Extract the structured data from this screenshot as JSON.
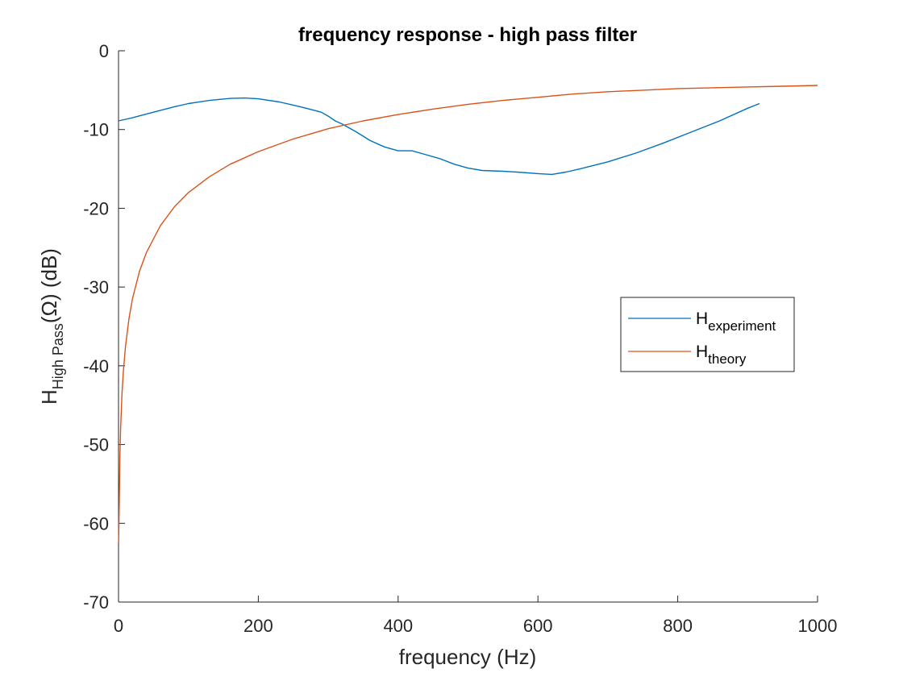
{
  "chart_data": {
    "type": "line",
    "title": "frequency response - high pass filter",
    "xlabel": "frequency (Hz)",
    "ylabel": {
      "main": "H",
      "subscript": "High Pass",
      "suffix": "(Ω) (dB)"
    },
    "xlim": [
      0,
      1000
    ],
    "ylim": [
      -70,
      0
    ],
    "xticks": [
      0,
      200,
      400,
      600,
      800,
      1000
    ],
    "yticks": [
      0,
      -10,
      -20,
      -30,
      -40,
      -50,
      -60,
      -70
    ],
    "grid": false,
    "legend_position": "right",
    "series": [
      {
        "name": "H",
        "name_subscript": "experiment",
        "color": "#0072BD",
        "x": [
          0,
          20,
          50,
          80,
          100,
          130,
          160,
          180,
          200,
          230,
          260,
          290,
          300,
          310,
          320,
          340,
          360,
          380,
          400,
          420,
          440,
          460,
          480,
          500,
          520,
          550,
          570,
          600,
          620,
          640,
          660,
          700,
          740,
          780,
          820,
          860,
          900,
          917
        ],
        "y": [
          -8.9,
          -8.5,
          -7.8,
          -7.1,
          -6.7,
          -6.3,
          -6.05,
          -6.0,
          -6.1,
          -6.5,
          -7.1,
          -7.8,
          -8.3,
          -8.9,
          -9.3,
          -10.3,
          -11.4,
          -12.2,
          -12.7,
          -12.7,
          -13.2,
          -13.7,
          -14.4,
          -14.9,
          -15.2,
          -15.3,
          -15.4,
          -15.6,
          -15.7,
          -15.4,
          -15.0,
          -14.1,
          -13.0,
          -11.7,
          -10.3,
          -8.9,
          -7.3,
          -6.7
        ]
      },
      {
        "name": "H",
        "name_subscript": "theory",
        "color": "#D95319",
        "x": [
          0.1,
          1,
          2,
          3,
          5,
          7,
          10,
          15,
          20,
          30,
          40,
          60,
          80,
          100,
          130,
          160,
          200,
          250,
          300,
          350,
          400,
          450,
          500,
          550,
          600,
          650,
          700,
          750,
          800,
          850,
          900,
          950,
          1000
        ],
        "y": [
          -62.5,
          -57.5,
          -51.5,
          -48.0,
          -43.5,
          -40.6,
          -37.5,
          -34.0,
          -31.5,
          -28.0,
          -25.6,
          -22.2,
          -19.8,
          -18.0,
          -16.0,
          -14.4,
          -12.8,
          -11.2,
          -9.9,
          -8.9,
          -8.1,
          -7.4,
          -6.8,
          -6.3,
          -5.9,
          -5.5,
          -5.2,
          -5.0,
          -4.8,
          -4.7,
          -4.6,
          -4.5,
          -4.4
        ]
      }
    ]
  }
}
